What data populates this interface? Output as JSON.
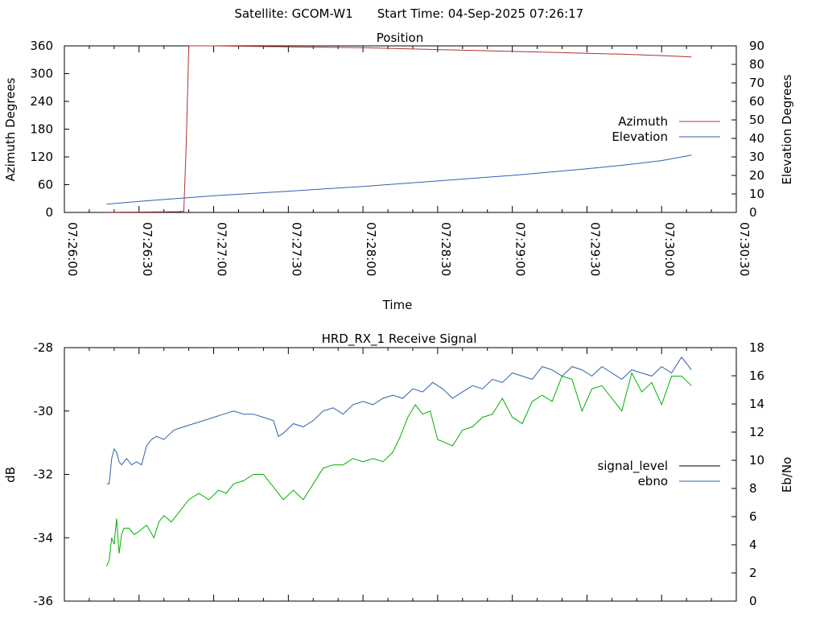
{
  "header": {
    "satellite_text": "Satellite: GCOM-W1",
    "start_time_text": "Start Time: 04-Sep-2025 07:26:17"
  },
  "chart_data": [
    {
      "type": "line",
      "title": "Position",
      "xlabel": "Time",
      "ylabel": "Azimuth Degrees",
      "y2label": "Elevation Degrees",
      "x_ticks": [
        "07:26:00",
        "07:26:30",
        "07:27:00",
        "07:27:30",
        "07:28:00",
        "07:28:30",
        "07:29:00",
        "07:29:30",
        "07:30:00",
        "07:30:30"
      ],
      "xlim_seconds": [
        0,
        270
      ],
      "ylim": [
        0,
        360
      ],
      "y_ticks": [
        0,
        60,
        120,
        180,
        240,
        300,
        360
      ],
      "y2lim": [
        0,
        90
      ],
      "y2_ticks": [
        0,
        10,
        20,
        30,
        40,
        50,
        60,
        70,
        80,
        90
      ],
      "legend_position": "right",
      "series": [
        {
          "name": "Azimuth",
          "axis": "y",
          "color": "#b03030",
          "x_seconds": [
            17,
            30,
            40,
            46,
            48,
            49,
            50,
            55,
            60,
            75,
            90,
            105,
            120,
            135,
            150,
            165,
            180,
            195,
            210,
            225,
            240,
            252
          ],
          "y": [
            0.5,
            0.8,
            1.2,
            1.8,
            2.5,
            150,
            360,
            360,
            360,
            359,
            358,
            357,
            356,
            354,
            352,
            350,
            348,
            346,
            344,
            342,
            339,
            336
          ]
        },
        {
          "name": "Elevation",
          "axis": "y2",
          "color": "#3060b0",
          "x_seconds": [
            17,
            30,
            45,
            60,
            75,
            90,
            105,
            120,
            135,
            150,
            165,
            180,
            195,
            210,
            225,
            240,
            252
          ],
          "y": [
            4.5,
            6.0,
            7.5,
            9.0,
            10.2,
            11.5,
            12.8,
            14.0,
            15.5,
            17.0,
            18.5,
            20.0,
            21.8,
            23.6,
            25.6,
            28.0,
            31.0
          ]
        }
      ]
    },
    {
      "type": "line",
      "title": "HRD_RX_1 Receive Signal",
      "xlabel": "",
      "ylabel": "dB",
      "y2label": "Eb/No",
      "xlim_seconds": [
        0,
        270
      ],
      "ylim": [
        -36,
        -28
      ],
      "y_ticks": [
        -36,
        -34,
        -32,
        -30,
        -28
      ],
      "y2lim": [
        0,
        18
      ],
      "y2_ticks": [
        0,
        2,
        4,
        6,
        8,
        10,
        12,
        14,
        16,
        18
      ],
      "legend_position": "right",
      "legend_note": "signal_level legend key drawn black; the green curve in plot corresponds to signal_level",
      "series": [
        {
          "name": "signal_level",
          "axis": "y",
          "color": "#00b000",
          "legend_color": "#000000",
          "x_seconds": [
            17,
            18,
            19,
            20,
            21,
            22,
            23,
            24,
            26,
            28,
            30,
            33,
            36,
            38,
            40,
            43,
            46,
            50,
            54,
            58,
            62,
            65,
            68,
            72,
            76,
            80,
            84,
            88,
            92,
            96,
            100,
            104,
            108,
            112,
            116,
            120,
            124,
            128,
            132,
            135,
            138,
            141,
            144,
            147,
            150,
            153,
            156,
            160,
            164,
            168,
            172,
            176,
            180,
            184,
            188,
            192,
            196,
            200,
            204,
            208,
            212,
            216,
            220,
            224,
            228,
            232,
            236,
            240,
            244,
            248,
            252
          ],
          "y": [
            -34.9,
            -34.7,
            -34.0,
            -34.2,
            -33.4,
            -34.5,
            -33.9,
            -33.7,
            -33.7,
            -33.9,
            -33.8,
            -33.6,
            -34.0,
            -33.5,
            -33.3,
            -33.5,
            -33.2,
            -32.8,
            -32.6,
            -32.8,
            -32.5,
            -32.6,
            -32.3,
            -32.2,
            -32.0,
            -32.0,
            -32.4,
            -32.8,
            -32.5,
            -32.8,
            -32.3,
            -31.8,
            -31.7,
            -31.7,
            -31.5,
            -31.6,
            -31.5,
            -31.6,
            -31.3,
            -30.8,
            -30.2,
            -29.8,
            -30.1,
            -30.0,
            -30.9,
            -31.0,
            -31.1,
            -30.6,
            -30.5,
            -30.2,
            -30.1,
            -29.6,
            -30.2,
            -30.4,
            -29.7,
            -29.5,
            -29.7,
            -28.9,
            -29.0,
            -30.0,
            -29.3,
            -29.2,
            -29.6,
            -30.0,
            -28.8,
            -29.4,
            -29.1,
            -29.8,
            -28.9,
            -28.9,
            -29.2
          ],
          "secondary_mapping": "Eb/No axis scaled 18 units over -36..-28"
        },
        {
          "name": "ebno",
          "axis": "y",
          "color": "#3060b0",
          "x_seconds": [
            17,
            18,
            19,
            20,
            21,
            22,
            23,
            25,
            27,
            29,
            31,
            33,
            35,
            37,
            40,
            44,
            48,
            52,
            56,
            60,
            64,
            68,
            72,
            76,
            80,
            84,
            86,
            88,
            92,
            96,
            100,
            104,
            108,
            112,
            116,
            120,
            124,
            128,
            132,
            136,
            140,
            144,
            148,
            152,
            156,
            160,
            164,
            168,
            172,
            176,
            180,
            184,
            188,
            192,
            196,
            200,
            204,
            208,
            212,
            216,
            220,
            224,
            228,
            232,
            236,
            240,
            244,
            248,
            252
          ],
          "y": [
            -32.3,
            -32.3,
            -31.5,
            -31.2,
            -31.3,
            -31.6,
            -31.7,
            -31.5,
            -31.7,
            -31.6,
            -31.7,
            -31.1,
            -30.9,
            -30.8,
            -30.9,
            -30.6,
            -30.5,
            -30.4,
            -30.3,
            -30.2,
            -30.1,
            -30.0,
            -30.1,
            -30.1,
            -30.2,
            -30.3,
            -30.8,
            -30.7,
            -30.4,
            -30.5,
            -30.3,
            -30.0,
            -29.9,
            -30.1,
            -29.8,
            -29.7,
            -29.8,
            -29.6,
            -29.5,
            -29.6,
            -29.3,
            -29.4,
            -29.1,
            -29.3,
            -29.6,
            -29.4,
            -29.2,
            -29.3,
            -29.0,
            -29.1,
            -28.8,
            -28.9,
            -29.0,
            -28.6,
            -28.7,
            -28.9,
            -28.6,
            -28.7,
            -28.9,
            -28.6,
            -28.8,
            -29.0,
            -28.7,
            -28.8,
            -28.9,
            -28.6,
            -28.8,
            -28.3,
            -28.7
          ]
        }
      ]
    }
  ]
}
